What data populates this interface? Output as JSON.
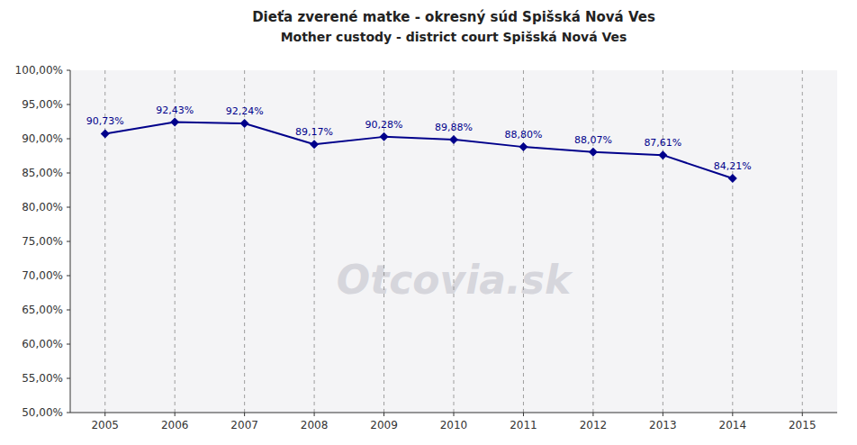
{
  "chart_data": {
    "type": "line",
    "title": "Dieťa zverené matke - okresný súd Spišská Nová Ves",
    "subtitle": "Mother custody - district court Spišská Nová Ves",
    "annotations": [
      "Otcovia.sk"
    ],
    "x": [
      2005,
      2006,
      2007,
      2008,
      2009,
      2010,
      2011,
      2012,
      2013,
      2014
    ],
    "values": [
      0.9073,
      0.9243,
      0.9224,
      0.8917,
      0.9028,
      0.8988,
      0.888,
      0.8807,
      0.8761,
      0.8421
    ],
    "value_labels": [
      "90,73%",
      "92,43%",
      "92,24%",
      "89,17%",
      "90,28%",
      "89,88%",
      "88,80%",
      "88,07%",
      "87,61%",
      "84,21%"
    ],
    "data_labels": true,
    "color": "#00008B",
    "marker": "diamond",
    "grid": "x",
    "xlim": [
      2004.5,
      2015.5
    ],
    "xticks": [
      2005,
      2006,
      2007,
      2008,
      2009,
      2010,
      2011,
      2012,
      2013,
      2014,
      2015
    ],
    "ylim": [
      0.5,
      1.0
    ],
    "yticks": [
      {
        "value": 0.5,
        "label": "50,00%"
      },
      {
        "value": 0.55,
        "label": "55,00%"
      },
      {
        "value": 0.6,
        "label": "60,00%"
      },
      {
        "value": 0.65,
        "label": "65,00%"
      },
      {
        "value": 0.7,
        "label": "70,00%"
      },
      {
        "value": 0.75,
        "label": "75,00%"
      },
      {
        "value": 0.8,
        "label": "80,00%"
      },
      {
        "value": 0.85,
        "label": "85,00%"
      },
      {
        "value": 0.9,
        "label": "90,00%"
      },
      {
        "value": 0.95,
        "label": "95,00%"
      },
      {
        "value": 1.0,
        "label": "100,00%"
      }
    ]
  }
}
